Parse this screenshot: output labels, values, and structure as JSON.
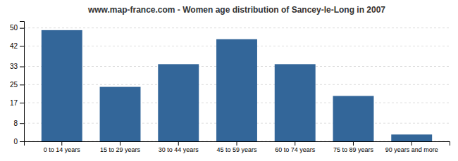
{
  "chart_data": {
    "type": "bar",
    "title": "www.map-france.com - Women age distribution of Sancey-le-Long in 2007",
    "categories": [
      "0 to 14 years",
      "15 to 29 years",
      "30 to 44 years",
      "45 to 59 years",
      "60 to 74 years",
      "75 to 89 years",
      "90 years and more"
    ],
    "values": [
      49,
      24,
      34,
      45,
      34,
      20,
      3
    ],
    "color": "#336699",
    "ylim": [
      0,
      53
    ],
    "yticks": [
      0,
      8,
      17,
      25,
      33,
      42,
      50
    ],
    "grid": true
  }
}
